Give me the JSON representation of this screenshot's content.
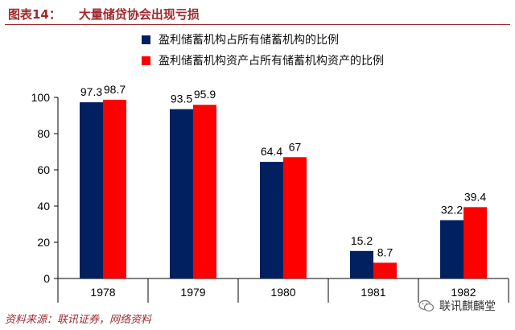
{
  "header": {
    "figure_no": "图表14：",
    "title": "大量储贷协会出现亏损"
  },
  "source": "资料来源：联讯证券，网络资料",
  "watermark": {
    "text": "联讯麒麟堂",
    "icon": "wechat-icon"
  },
  "chart_data": {
    "type": "bar",
    "title": "",
    "xlabel": "",
    "ylabel": "",
    "ylim": [
      0,
      100
    ],
    "yticks": [
      0,
      20,
      40,
      60,
      80,
      100
    ],
    "categories": [
      "1978",
      "1979",
      "1980",
      "1981",
      "1982"
    ],
    "series": [
      {
        "name": "盈利储蓄机构占所有储蓄机构的比例",
        "color": "#002060",
        "values": [
          97.3,
          93.5,
          64.4,
          15.2,
          32.2
        ],
        "labels": [
          "97.3",
          "93.5",
          "64.4",
          "15.2",
          "32.2"
        ]
      },
      {
        "name": "盈利储蓄机构资产占所有储蓄机构资产的比例",
        "color": "#ff0000",
        "values": [
          98.7,
          95.9,
          67,
          8.7,
          39.4
        ],
        "labels": [
          "98.7",
          "95.9",
          "67",
          "8.7",
          "39.4"
        ]
      }
    ],
    "legend_position": "top-center",
    "grid": false
  }
}
